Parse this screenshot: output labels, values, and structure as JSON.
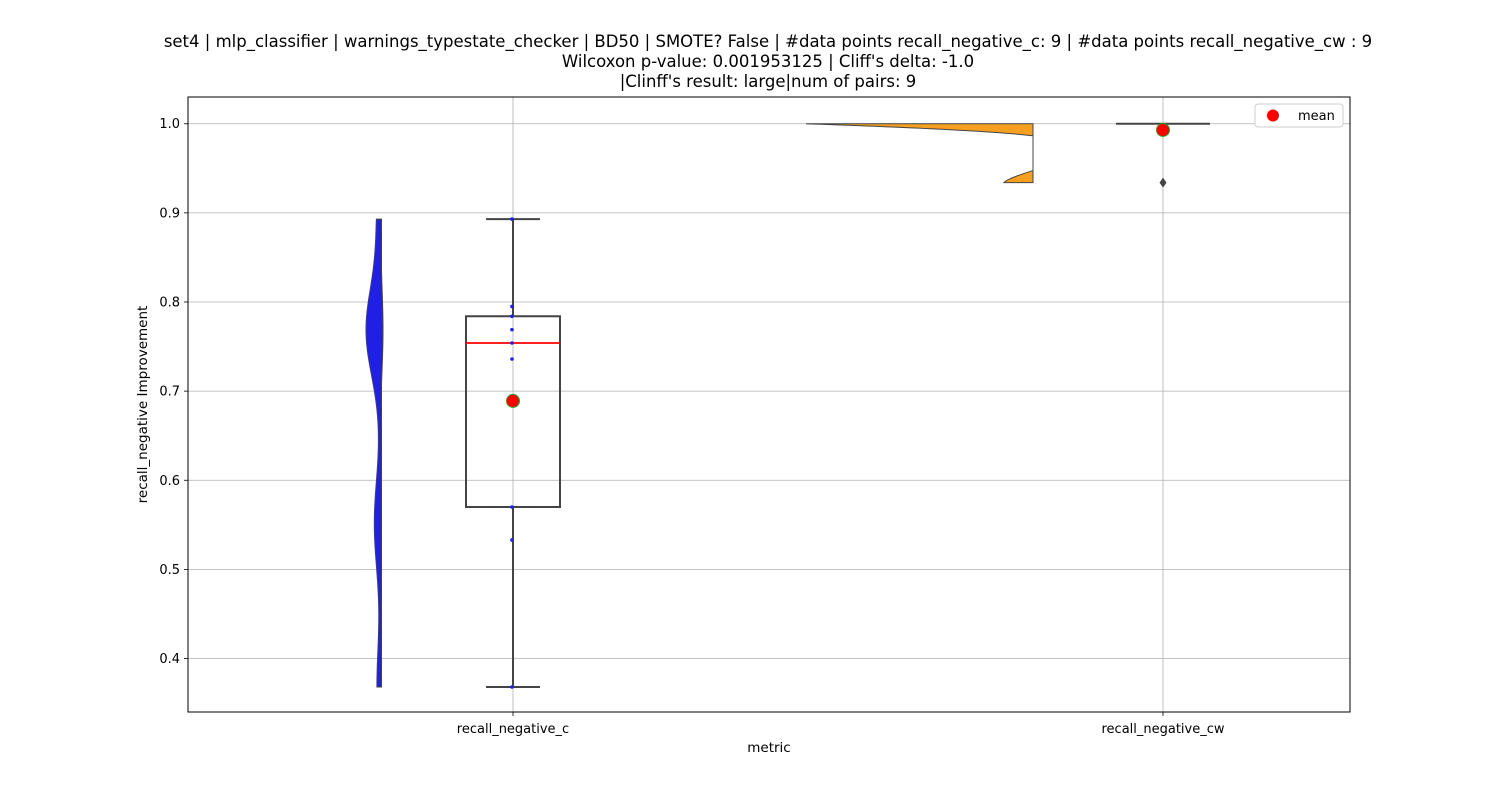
{
  "chart_data": {
    "type": "box",
    "title_lines": [
      "set4 | mlp_classifier | warnings_typestate_checker | BD50 | SMOTE? False | #data points recall_negative_c: 9 | #data points recall_negative_cw : 9",
      "Wilcoxon p-value: 0.001953125 | Cliff's delta: -1.0",
      "|Clinff's result: large|num of pairs: 9"
    ],
    "xlabel": "metric",
    "ylabel": "recall_negative Improvement",
    "categories": [
      "recall_negative_c",
      "recall_negative_cw"
    ],
    "ylim": [
      0.34,
      1.03
    ],
    "yticks": [
      0.4,
      0.5,
      0.6,
      0.7,
      0.8,
      0.9,
      1.0
    ],
    "ytick_labels": [
      "0.4",
      "0.5",
      "0.6",
      "0.7",
      "0.8",
      "0.9",
      "1.0"
    ],
    "grid": true,
    "legend": {
      "placement": "upper-right",
      "entries": [
        {
          "label": "mean",
          "color": "#ff0000"
        }
      ]
    },
    "colors": {
      "violin_c": "#1f1fe6",
      "violin_cw": "#f5a020",
      "median": "#ff0000",
      "mean_fill": "#ff0000",
      "mean_edge": "#2ca02c",
      "box_edge": "#444444",
      "points": "#1f1fe6",
      "grid": "#b0b0b0"
    },
    "series": [
      {
        "name": "recall_negative_c",
        "points": [
          0.368,
          0.533,
          0.57,
          0.736,
          0.754,
          0.769,
          0.784,
          0.795,
          0.893
        ],
        "box": {
          "whisker_low": 0.368,
          "q1": 0.57,
          "median": 0.754,
          "q3": 0.784,
          "whisker_high": 0.893
        },
        "mean": 0.689
      },
      {
        "name": "recall_negative_cw",
        "points": [
          0.934,
          1.0,
          1.0,
          1.0,
          1.0,
          1.0,
          1.0,
          1.0,
          1.0
        ],
        "box": {
          "whisker_low": 1.0,
          "q1": 1.0,
          "median": 1.0,
          "q3": 1.0,
          "whisker_high": 1.0
        },
        "outliers": [
          0.934
        ],
        "mean": 0.993
      }
    ]
  }
}
